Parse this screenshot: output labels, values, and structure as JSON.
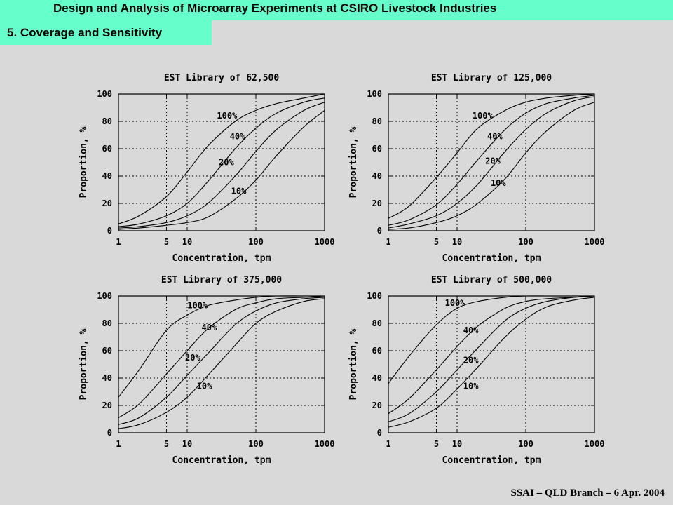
{
  "header": {
    "title": "Design and Analysis of Microarray Experiments at CSIRO Livestock Industries",
    "section": "5. Coverage and Sensitivity"
  },
  "footer": {
    "text": "SSAI – QLD Branch – 6 Apr. 2004"
  },
  "colors": {
    "header_bg": "#66ffcc",
    "page_bg": "#d9d9d9"
  },
  "chart_data": [
    {
      "type": "line",
      "title": "EST Library of 62,500",
      "xlabel": "Concentration, tpm",
      "ylabel": "Proportion, %",
      "x_scale": "log",
      "xlim": [
        1,
        1000
      ],
      "ylim": [
        0,
        100
      ],
      "x_ticks": [
        1,
        5,
        10,
        100,
        1000
      ],
      "y_ticks": [
        0,
        20,
        40,
        60,
        80,
        100
      ],
      "grid": true,
      "x": [
        1,
        2,
        5,
        10,
        20,
        50,
        100,
        200,
        500,
        1000
      ],
      "series": [
        {
          "name": "100%",
          "values": [
            5,
            11,
            25,
            43,
            62,
            80,
            88,
            93,
            97,
            100
          ]
        },
        {
          "name": "40%",
          "values": [
            3,
            5,
            11,
            20,
            36,
            60,
            75,
            86,
            94,
            97
          ]
        },
        {
          "name": "20%",
          "values": [
            2,
            3,
            6,
            11,
            20,
            40,
            58,
            74,
            88,
            94
          ]
        },
        {
          "name": "10%",
          "values": [
            1,
            2,
            4,
            6,
            10,
            23,
            37,
            55,
            76,
            88
          ]
        }
      ]
    },
    {
      "type": "line",
      "title": "EST Library of 125,000",
      "xlabel": "Concentration, tpm",
      "ylabel": "Proportion, %",
      "x_scale": "log",
      "xlim": [
        1,
        1000
      ],
      "ylim": [
        0,
        100
      ],
      "x_ticks": [
        1,
        5,
        10,
        100,
        1000
      ],
      "y_ticks": [
        0,
        20,
        40,
        60,
        80,
        100
      ],
      "grid": true,
      "x": [
        1,
        2,
        5,
        10,
        20,
        50,
        100,
        200,
        500,
        1000
      ],
      "series": [
        {
          "name": "100%",
          "values": [
            9,
            18,
            39,
            57,
            75,
            88,
            94,
            97,
            99,
            100
          ]
        },
        {
          "name": "40%",
          "values": [
            4,
            8,
            19,
            34,
            52,
            74,
            86,
            93,
            97,
            99
          ]
        },
        {
          "name": "20%",
          "values": [
            2,
            5,
            11,
            20,
            34,
            58,
            74,
            86,
            95,
            98
          ]
        },
        {
          "name": "10%",
          "values": [
            1,
            2,
            6,
            11,
            20,
            38,
            57,
            73,
            88,
            94
          ]
        }
      ]
    },
    {
      "type": "line",
      "title": "EST Library of 375,000",
      "xlabel": "Concentration, tpm",
      "ylabel": "Proportion, %",
      "x_scale": "log",
      "xlim": [
        1,
        1000
      ],
      "ylim": [
        0,
        100
      ],
      "x_ticks": [
        1,
        5,
        10,
        100,
        1000
      ],
      "y_ticks": [
        0,
        20,
        40,
        60,
        80,
        100
      ],
      "grid": true,
      "x": [
        1,
        2,
        5,
        10,
        20,
        50,
        100,
        200,
        500,
        1000
      ],
      "series": [
        {
          "name": "100%",
          "values": [
            26,
            46,
            75,
            86,
            93,
            97,
            99,
            100,
            100,
            100
          ]
        },
        {
          "name": "40%",
          "values": [
            11,
            21,
            43,
            60,
            76,
            90,
            95,
            98,
            99,
            100
          ]
        },
        {
          "name": "20%",
          "values": [
            6,
            11,
            26,
            42,
            58,
            79,
            89,
            95,
            98,
            99
          ]
        },
        {
          "name": "10%",
          "values": [
            3,
            6,
            15,
            26,
            42,
            64,
            80,
            89,
            96,
            98
          ]
        }
      ]
    },
    {
      "type": "line",
      "title": "EST Library of 500,000",
      "xlabel": "Concentration, tpm",
      "ylabel": "Proportion, %",
      "x_scale": "log",
      "xlim": [
        1,
        1000
      ],
      "ylim": [
        0,
        100
      ],
      "x_ticks": [
        1,
        5,
        10,
        100,
        1000
      ],
      "y_ticks": [
        0,
        20,
        40,
        60,
        80,
        100
      ],
      "grid": true,
      "x": [
        1,
        2,
        5,
        10,
        20,
        50,
        100,
        200,
        500,
        1000
      ],
      "series": [
        {
          "name": "100%",
          "values": [
            36,
            56,
            79,
            91,
            96,
            99,
            100,
            100,
            100,
            100
          ]
        },
        {
          "name": "40%",
          "values": [
            14,
            25,
            46,
            63,
            78,
            91,
            96,
            98,
            99,
            100
          ]
        },
        {
          "name": "20%",
          "values": [
            8,
            14,
            30,
            46,
            62,
            82,
            91,
            96,
            99,
            100
          ]
        },
        {
          "name": "10%",
          "values": [
            4,
            8,
            18,
            32,
            48,
            70,
            83,
            92,
            97,
            99
          ]
        }
      ]
    }
  ]
}
